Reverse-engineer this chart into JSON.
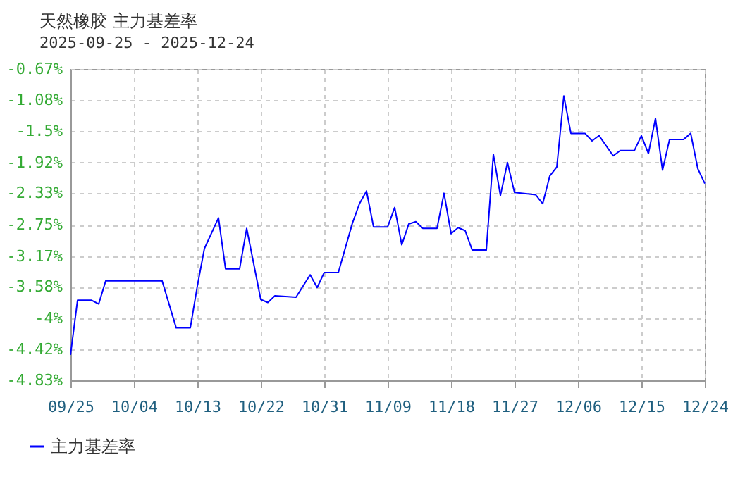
{
  "chart_data": {
    "type": "line",
    "title": "天然橡胶  主力基差率",
    "subtitle": "2025-09-25 - 2025-12-24",
    "x": [
      "2025-09-25",
      "2025-09-26",
      "2025-09-28",
      "2025-09-29",
      "2025-09-30",
      "2025-10-08",
      "2025-10-10",
      "2025-10-12",
      "2025-10-13",
      "2025-10-14",
      "2025-10-16",
      "2025-10-17",
      "2025-10-19",
      "2025-10-20",
      "2025-10-22",
      "2025-10-23",
      "2025-10-24",
      "2025-10-27",
      "2025-10-29",
      "2025-10-30",
      "2025-10-31",
      "2025-11-02",
      "2025-11-04",
      "2025-11-05",
      "2025-11-06",
      "2025-11-07",
      "2025-11-09",
      "2025-11-10",
      "2025-11-11",
      "2025-11-12",
      "2025-11-13",
      "2025-11-14",
      "2025-11-16",
      "2025-11-17",
      "2025-11-18",
      "2025-11-19",
      "2025-11-20",
      "2025-11-21",
      "2025-11-23",
      "2025-11-24",
      "2025-11-25",
      "2025-11-26",
      "2025-11-27",
      "2025-11-30",
      "2025-12-01",
      "2025-12-02",
      "2025-12-03",
      "2025-12-04",
      "2025-12-05",
      "2025-12-07",
      "2025-12-08",
      "2025-12-09",
      "2025-12-11",
      "2025-12-12",
      "2025-12-14",
      "2025-12-15",
      "2025-12-16",
      "2025-12-17",
      "2025-12-18",
      "2025-12-19",
      "2025-12-21",
      "2025-12-22",
      "2025-12-23",
      "2025-12-24"
    ],
    "series": [
      {
        "name": "主力基差率",
        "color": "#0000ff",
        "values": [
          -4.49,
          -3.76,
          -3.76,
          -3.81,
          -3.5,
          -3.5,
          -4.13,
          -4.13,
          -3.57,
          -3.07,
          -2.66,
          -3.34,
          -3.34,
          -2.8,
          -3.75,
          -3.79,
          -3.7,
          -3.72,
          -3.42,
          -3.59,
          -3.39,
          -3.39,
          -2.73,
          -2.47,
          -2.3,
          -2.78,
          -2.78,
          -2.52,
          -3.02,
          -2.74,
          -2.71,
          -2.8,
          -2.8,
          -2.33,
          -2.87,
          -2.79,
          -2.83,
          -3.09,
          -3.09,
          -1.81,
          -2.36,
          -1.92,
          -2.32,
          -2.35,
          -2.47,
          -2.1,
          -1.98,
          -1.03,
          -1.53,
          -1.53,
          -1.63,
          -1.56,
          -1.83,
          -1.76,
          -1.76,
          -1.56,
          -1.8,
          -1.33,
          -2.02,
          -1.61,
          -1.61,
          -1.53,
          -2.0,
          -2.2
        ]
      }
    ],
    "xlim": [
      "2025-09-25",
      "2025-12-24"
    ],
    "xticks": [
      {
        "value": "2025-09-25",
        "label": "09/25"
      },
      {
        "value": "2025-10-04",
        "label": "10/04"
      },
      {
        "value": "2025-10-13",
        "label": "10/13"
      },
      {
        "value": "2025-10-22",
        "label": "10/22"
      },
      {
        "value": "2025-10-31",
        "label": "10/31"
      },
      {
        "value": "2025-11-09",
        "label": "11/09"
      },
      {
        "value": "2025-11-18",
        "label": "11/18"
      },
      {
        "value": "2025-11-27",
        "label": "11/27"
      },
      {
        "value": "2025-12-06",
        "label": "12/06"
      },
      {
        "value": "2025-12-15",
        "label": "12/15"
      },
      {
        "value": "2025-12-24",
        "label": "12/24"
      }
    ],
    "ylim": [
      -4.83,
      -0.67
    ],
    "yticks": [
      {
        "value": -4.83,
        "label": "-4.83%"
      },
      {
        "value": -4.42,
        "label": "-4.42%"
      },
      {
        "value": -4,
        "label": "-4%"
      },
      {
        "value": -3.58,
        "label": "-3.58%"
      },
      {
        "value": -3.17,
        "label": "-3.17%"
      },
      {
        "value": -2.75,
        "label": "-2.75%"
      },
      {
        "value": -2.33,
        "label": "-2.33%"
      },
      {
        "value": -1.92,
        "label": "-1.92%"
      },
      {
        "value": -1.5,
        "label": "-1.5%"
      },
      {
        "value": -1.08,
        "label": "-1.08%"
      },
      {
        "value": -0.67,
        "label": "-0.67%"
      }
    ],
    "grid": true,
    "legend": "bottom left",
    "line_style": "solid",
    "marker": "none"
  }
}
